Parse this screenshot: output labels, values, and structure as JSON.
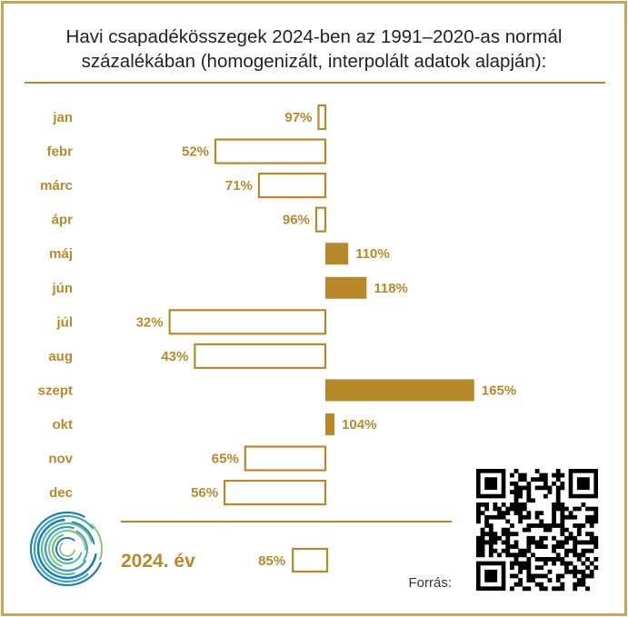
{
  "chart_data": {
    "type": "bar",
    "title": [
      "Havi csapadékösszegek 2024-ben az 1991–2020-as normál",
      "százalékában (homogenizált, interpolált adatok alapján):"
    ],
    "baseline": 100,
    "categories": [
      "jan",
      "febr",
      "márc",
      "ápr",
      "máj",
      "jún",
      "júl",
      "aug",
      "szept",
      "okt",
      "nov",
      "dec"
    ],
    "values": [
      97,
      52,
      71,
      96,
      110,
      118,
      32,
      43,
      165,
      104,
      65,
      56
    ],
    "labels": [
      "97%",
      "52%",
      "71%",
      "96%",
      "110%",
      "118%",
      "32%",
      "43%",
      "165%",
      "104%",
      "65%",
      "56%"
    ],
    "annual": {
      "label": "2024. év",
      "value": 85,
      "value_label": "85%"
    },
    "source_label": "Forrás:"
  },
  "colors": {
    "accent": "#b8892a",
    "text": "#222222",
    "frame": "#c9a55a",
    "logo": [
      "#1f7fb3",
      "#3aa3c9",
      "#5fbf8f",
      "#8cc67a"
    ]
  },
  "icons": {
    "logo": "circular-swirl-logo",
    "qr": "qr-code-icon"
  }
}
